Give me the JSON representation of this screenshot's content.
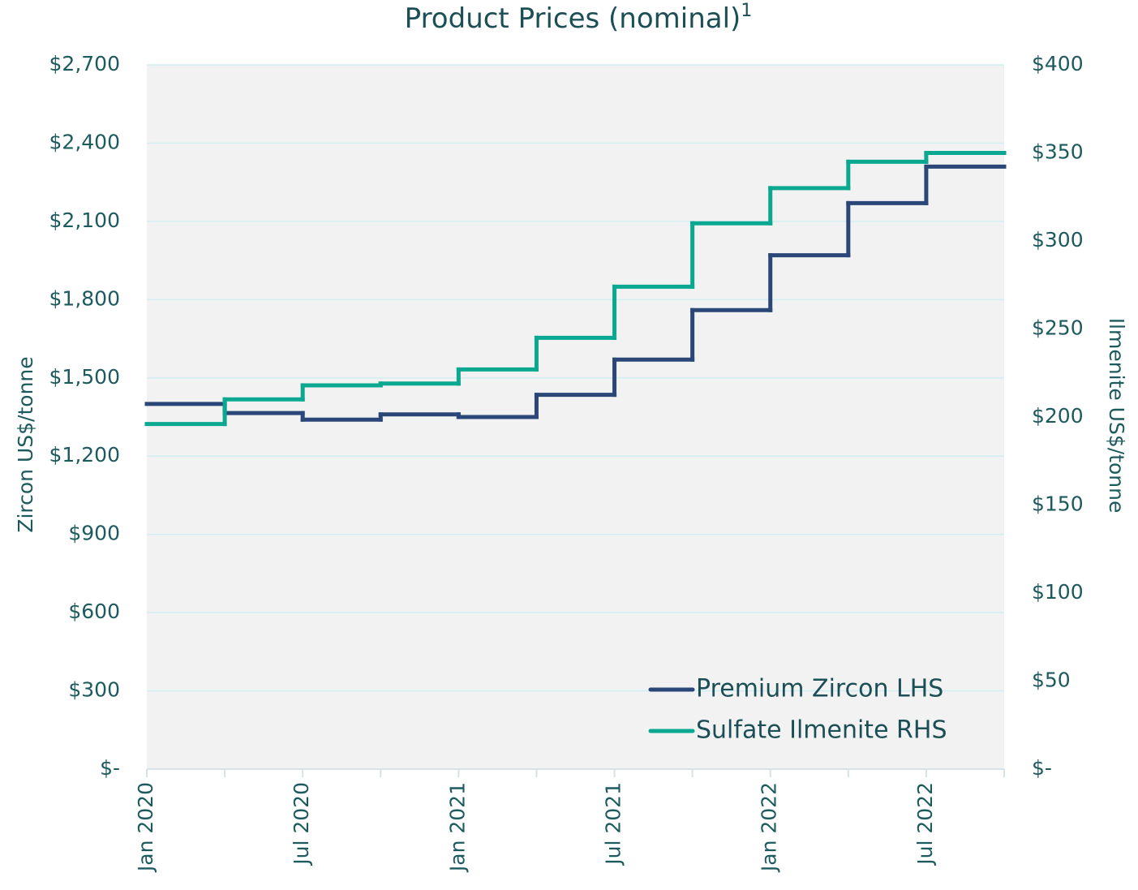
{
  "chart_data": {
    "type": "line",
    "step": "post",
    "title": "Product Prices (nominal)",
    "title_superscript": "1",
    "y_label": "Zircon US$/tonne",
    "y2_label": "Ilmenite US$/tonne",
    "x": [
      "2020-01",
      "2020-04",
      "2020-07",
      "2020-10",
      "2021-01",
      "2021-04",
      "2021-07",
      "2021-10",
      "2022-01",
      "2022-04",
      "2022-07"
    ],
    "xlim": [
      "2020-01",
      "2022-10"
    ],
    "xticks": [
      {
        "value": "2020-01",
        "label": "Jan 2020"
      },
      {
        "value": "2020-07",
        "label": "Jul 2020"
      },
      {
        "value": "2021-01",
        "label": "Jan 2021"
      },
      {
        "value": "2021-07",
        "label": "Jul 2021"
      },
      {
        "value": "2022-01",
        "label": "Jan 2022"
      },
      {
        "value": "2022-07",
        "label": "Jul 2022"
      }
    ],
    "xminorticks": [
      "2020-04",
      "2020-10",
      "2021-04",
      "2021-10",
      "2022-04",
      "2022-10"
    ],
    "ylim": [
      0,
      2700
    ],
    "yticks": [
      {
        "value": 0,
        "label": "$-"
      },
      {
        "value": 300,
        "label": "$300"
      },
      {
        "value": 600,
        "label": "$600"
      },
      {
        "value": 900,
        "label": "$900"
      },
      {
        "value": 1200,
        "label": "$1,200"
      },
      {
        "value": 1500,
        "label": "$1,500"
      },
      {
        "value": 1800,
        "label": "$1,800"
      },
      {
        "value": 2100,
        "label": "$2,100"
      },
      {
        "value": 2400,
        "label": "$2,400"
      },
      {
        "value": 2700,
        "label": "$2,700"
      }
    ],
    "y2lim": [
      0,
      400
    ],
    "y2ticks": [
      {
        "value": 0,
        "label": "$-"
      },
      {
        "value": 50,
        "label": "$50"
      },
      {
        "value": 100,
        "label": "$100"
      },
      {
        "value": 150,
        "label": "$150"
      },
      {
        "value": 200,
        "label": "$200"
      },
      {
        "value": 250,
        "label": "$250"
      },
      {
        "value": 300,
        "label": "$300"
      },
      {
        "value": 350,
        "label": "$350"
      },
      {
        "value": 400,
        "label": "$400"
      }
    ],
    "grid": true,
    "legend": "lower right",
    "series": [
      {
        "name": "Premium Zircon LHS",
        "color": "#2a4778",
        "values": [
          1400,
          1365,
          1340,
          1360,
          1350,
          1435,
          1570,
          1760,
          1970,
          2170,
          2310
        ]
      },
      {
        "name": "Sulfate Ilmenite RHS",
        "color": "#0aa890",
        "axis": "y2",
        "values": [
          196,
          210,
          218,
          219,
          227,
          245,
          274,
          310,
          330,
          345,
          350
        ]
      }
    ]
  }
}
